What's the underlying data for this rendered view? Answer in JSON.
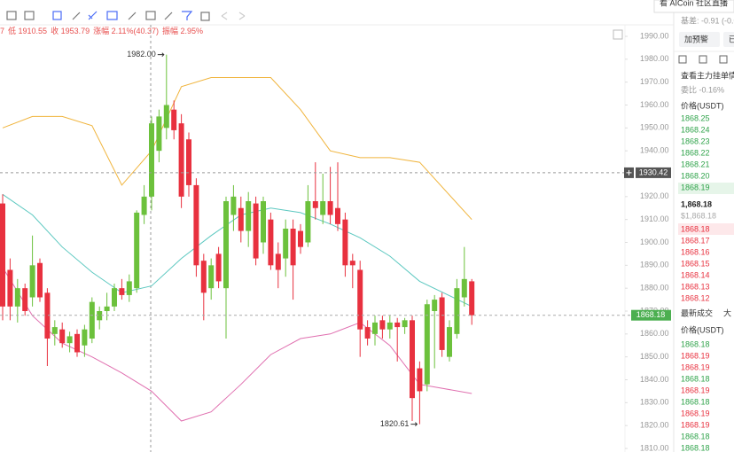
{
  "info_bar": {
    "items": [
      "7",
      "低 1910.55",
      "收 1953.79",
      "涨幅 2.11%(40.37)",
      "振幅 2.95%"
    ]
  },
  "chart_data": {
    "type": "candlestick",
    "open": [
      1917,
      1888,
      1872,
      1880,
      1876,
      1891,
      1878,
      1860,
      1862,
      1856,
      1860,
      1855,
      1858,
      1866,
      1870,
      1872,
      1880,
      1877,
      1880,
      1912,
      1920,
      1940,
      1950,
      1958,
      1952,
      1945,
      1925,
      1892,
      1880,
      1895,
      1880,
      1912,
      1915,
      1905,
      1917,
      1900,
      1910,
      1895,
      1893,
      1906,
      1905,
      1900,
      1918,
      1912,
      1918,
      1915,
      1910,
      1892,
      1888,
      1863,
      1860,
      1866,
      1862,
      1865,
      1863,
      1866,
      1845,
      1838,
      1870,
      1876,
      1850,
      1860,
      1876,
      1883
    ],
    "high": [
      1921,
      1893,
      1884,
      1882,
      1903,
      1893,
      1880,
      1866,
      1865,
      1861,
      1862,
      1864,
      1876,
      1872,
      1878,
      1882,
      1884,
      1886,
      1914,
      1925,
      1955,
      1958,
      1982,
      1962,
      1956,
      1948,
      1928,
      1895,
      1893,
      1898,
      1920,
      1925,
      1920,
      1922,
      1920,
      1920,
      1913,
      1900,
      1910,
      1910,
      1908,
      1925,
      1935,
      1930,
      1933,
      1935,
      1913,
      1895,
      1892,
      1866,
      1868,
      1868,
      1868,
      1867,
      1867,
      1868,
      1848,
      1875,
      1877,
      1878,
      1866,
      1884,
      1898,
      1884
    ],
    "low": [
      1866,
      1866,
      1865,
      1868,
      1872,
      1874,
      1846,
      1855,
      1854,
      1852,
      1850,
      1850,
      1856,
      1862,
      1866,
      1870,
      1875,
      1874,
      1878,
      1908,
      1914,
      1935,
      1945,
      1945,
      1915,
      1920,
      1885,
      1866,
      1875,
      1880,
      1858,
      1905,
      1900,
      1898,
      1890,
      1895,
      1888,
      1880,
      1885,
      1875,
      1895,
      1898,
      1910,
      1908,
      1908,
      1905,
      1885,
      1880,
      1850,
      1855,
      1855,
      1858,
      1858,
      1848,
      1860,
      1822,
      1820.61,
      1835,
      1845,
      1850,
      1848,
      1858,
      1872,
      1864
    ],
    "close": [
      1872,
      1872,
      1880,
      1870,
      1890,
      1876,
      1858,
      1863,
      1856,
      1859,
      1852,
      1862,
      1874,
      1870,
      1872,
      1880,
      1877,
      1883,
      1913,
      1920,
      1952,
      1955,
      1960,
      1949,
      1920,
      1925,
      1890,
      1878,
      1890,
      1883,
      1918,
      1920,
      1905,
      1918,
      1893,
      1918,
      1890,
      1888,
      1906,
      1890,
      1898,
      1918,
      1915,
      1918,
      1912,
      1908,
      1890,
      1890,
      1862,
      1858,
      1865,
      1862,
      1865,
      1863,
      1866,
      1832,
      1835,
      1873,
      1875,
      1853,
      1863,
      1880,
      1884,
      1868.18
    ],
    "colors": {
      "up": "#6cc13c",
      "down": "#e8313f"
    },
    "bands": {
      "x": [
        0,
        4,
        8,
        12,
        16,
        20,
        24,
        28,
        32,
        36,
        40,
        44,
        48,
        52,
        56,
        63
      ],
      "upper": {
        "color": "#f0b43c",
        "values": [
          1950,
          1955,
          1955,
          1951,
          1925,
          1940,
          1968,
          1972,
          1972,
          1972,
          1958,
          1940,
          1937,
          1937,
          1935,
          1910
        ]
      },
      "middle": {
        "color": "#5cc8c0",
        "values": [
          1921,
          1912,
          1898,
          1887,
          1878,
          1881,
          1893,
          1903,
          1912,
          1915,
          1913,
          1908,
          1902,
          1894,
          1883,
          1872
        ]
      },
      "lower": {
        "color": "#e070b0",
        "values": [
          1889,
          1868,
          1856,
          1850,
          1843,
          1835,
          1822,
          1826,
          1838,
          1851,
          1858,
          1860,
          1865,
          1855,
          1838,
          1834
        ]
      }
    },
    "ylim": [
      1810,
      1990
    ],
    "yticks": [
      {
        "value": 1990,
        "label": "1990.00"
      },
      {
        "value": 1980,
        "label": "1980.00"
      },
      {
        "value": 1970,
        "label": "1970.00"
      },
      {
        "value": 1960,
        "label": "1960.00"
      },
      {
        "value": 1950,
        "label": "1950.00"
      },
      {
        "value": 1940,
        "label": "1940.00"
      },
      {
        "value": 1930,
        "label": "1930.00"
      },
      {
        "value": 1920,
        "label": "1920.00"
      },
      {
        "value": 1910,
        "label": "1910.00"
      },
      {
        "value": 1900,
        "label": "1900.00"
      },
      {
        "value": 1890,
        "label": "1890.00"
      },
      {
        "value": 1880,
        "label": "1880.00"
      },
      {
        "value": 1870,
        "label": "1870.00"
      },
      {
        "value": 1860,
        "label": "1860.00"
      },
      {
        "value": 1850,
        "label": "1850.00"
      },
      {
        "value": 1840,
        "label": "1840.00"
      },
      {
        "value": 1830,
        "label": "1830.00"
      },
      {
        "value": 1820,
        "label": "1820.00"
      },
      {
        "value": 1810,
        "label": "1810.00"
      }
    ],
    "annotations": [
      {
        "value": 1982,
        "label": "1982.00",
        "at": "high"
      },
      {
        "value": 1820.61,
        "label": "1820.61",
        "at": "low"
      }
    ],
    "crosshair": {
      "value": 1930.42,
      "label": "1930.42"
    },
    "last_price": {
      "value": 1868.18,
      "label": "1868.18"
    }
  },
  "side_panel": {
    "banner": "看 AICoin 社区直播",
    "basis": "基差: -0.91 (-0.0",
    "buttons": [
      "加预警",
      "已"
    ],
    "depth_link": "查看主力挂单情",
    "ratio": "委比 -0.16%",
    "price_header": "价格(USDT)",
    "asks": [
      "1868.25",
      "1868.24",
      "1868.23",
      "1868.22",
      "1868.21",
      "1868.20",
      "1868.19"
    ],
    "last": "1,868.18",
    "last_usd": "$1,868.18",
    "bids": [
      "1868.18",
      "1868.17",
      "1868.16",
      "1868.15",
      "1868.14",
      "1868.13",
      "1868.12"
    ],
    "tabs": [
      "最新成交",
      "大"
    ],
    "trades_header": "价格(USDT)",
    "trades": [
      {
        "price": "1868.18",
        "side": "buy"
      },
      {
        "price": "1868.19",
        "side": "sell"
      },
      {
        "price": "1868.19",
        "side": "sell"
      },
      {
        "price": "1868.18",
        "side": "buy"
      },
      {
        "price": "1868.19",
        "side": "sell"
      },
      {
        "price": "1868.18",
        "side": "buy"
      },
      {
        "price": "1868.19",
        "side": "sell"
      },
      {
        "price": "1868.19",
        "side": "sell"
      },
      {
        "price": "1868.18",
        "side": "buy"
      },
      {
        "price": "1868.18",
        "side": "buy"
      }
    ]
  }
}
